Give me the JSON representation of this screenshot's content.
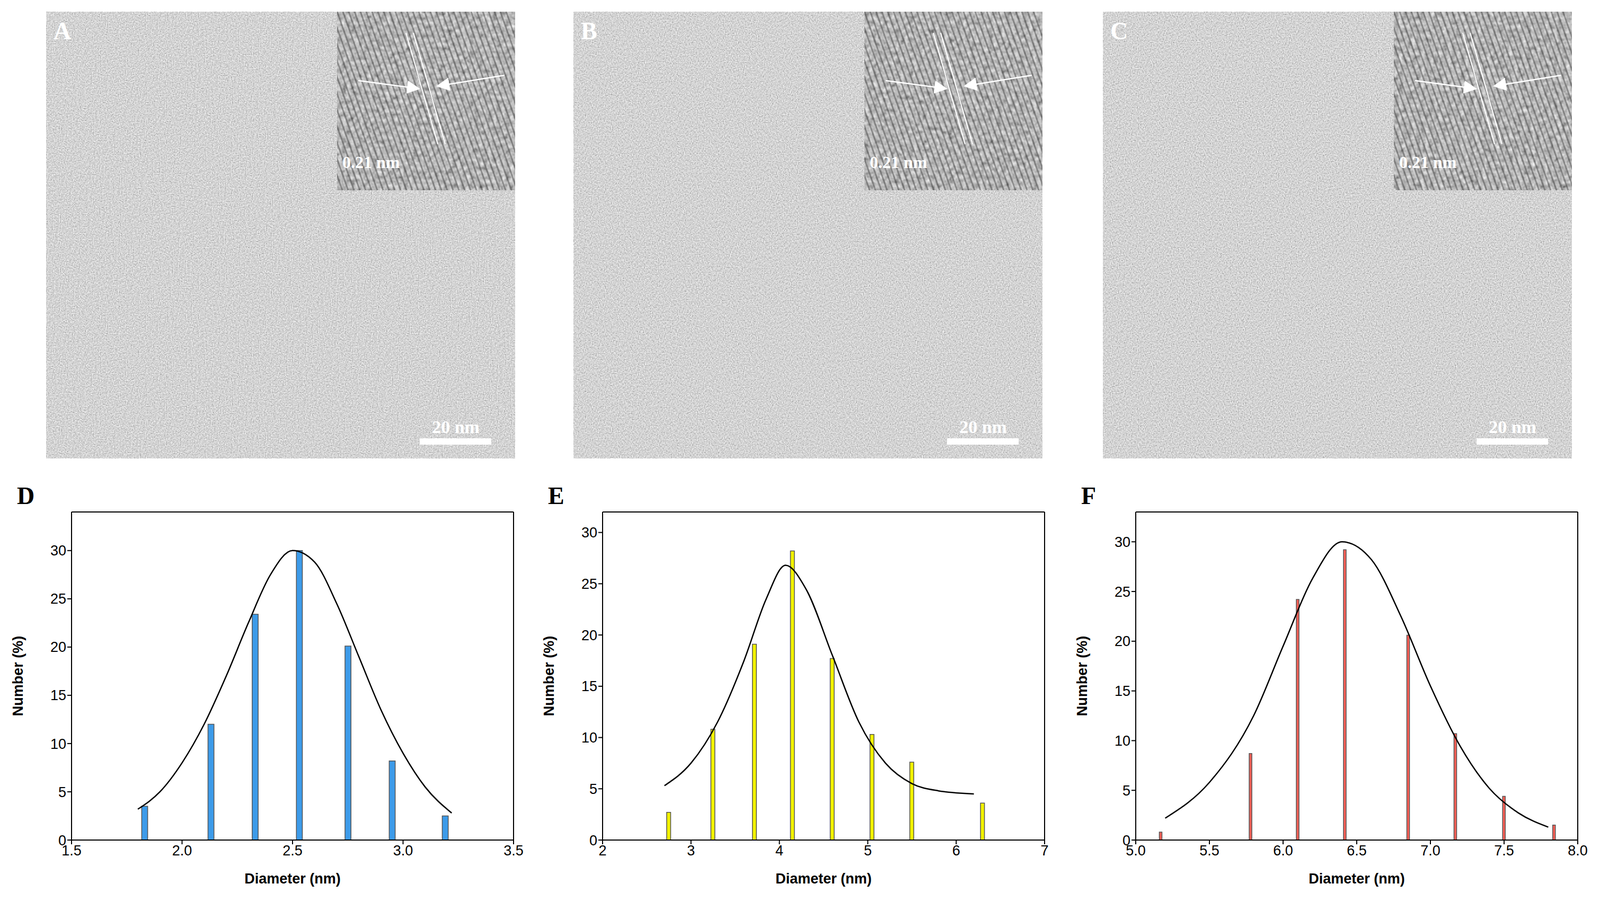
{
  "images": [
    {
      "panel": "A",
      "inset_label": "0.21 nm",
      "scale_bar": "20 nm"
    },
    {
      "panel": "B",
      "inset_label": "0.21 nm",
      "scale_bar": "20 nm"
    },
    {
      "panel": "C",
      "inset_label": "0.21 nm",
      "scale_bar": "20 nm"
    }
  ],
  "chart_data": [
    {
      "type": "bar",
      "panel": "D",
      "xlabel": "Diameter (nm)",
      "ylabel": "Number (%)",
      "xlim": [
        1.5,
        3.5
      ],
      "xticks": [
        1.5,
        {
          "value": 2,
          "label": "2.0"
        },
        2.5,
        {
          "value": 3,
          "label": "3.0"
        },
        3.5
      ],
      "ylim": [
        0,
        34
      ],
      "yticks": [
        0,
        5,
        10,
        15,
        20,
        25,
        30
      ],
      "series": [
        {
          "type": "bar",
          "color": "#3d9be9",
          "x": [
            1.83,
            2.13,
            2.33,
            2.53,
            2.75,
            2.95,
            3.19
          ],
          "values": [
            3.5,
            12,
            23.4,
            30,
            20.1,
            8.2,
            2.5
          ]
        },
        {
          "type": "line",
          "color": "#000000",
          "x": [
            1.8,
            1.9,
            2.0,
            2.1,
            2.2,
            2.3,
            2.4,
            2.5,
            2.6,
            2.7,
            2.8,
            2.9,
            3.0,
            3.1,
            3.22
          ],
          "values": [
            3.2,
            5,
            8,
            12,
            17,
            22.5,
            27.5,
            30,
            28.8,
            24.5,
            19,
            13.5,
            9,
            5.5,
            2.8
          ]
        }
      ]
    },
    {
      "type": "bar",
      "panel": "E",
      "xlabel": "Diameter (nm)",
      "ylabel": "Number (%)",
      "xlim": [
        2,
        7
      ],
      "xticks": [
        2,
        3,
        4,
        5,
        6,
        7
      ],
      "ylim": [
        0,
        32
      ],
      "yticks": [
        0,
        5,
        10,
        15,
        20,
        25,
        30
      ],
      "series": [
        {
          "type": "bar",
          "color": "#f2f200",
          "x": [
            2.75,
            3.25,
            3.72,
            4.15,
            4.6,
            5.05,
            5.5,
            6.3
          ],
          "values": [
            2.7,
            10.8,
            19.1,
            28.2,
            17.7,
            10.3,
            7.6,
            3.6
          ]
        },
        {
          "type": "line",
          "color": "#000000",
          "x": [
            2.7,
            3.0,
            3.3,
            3.6,
            3.85,
            4.07,
            4.3,
            4.6,
            4.9,
            5.2,
            5.5,
            5.8,
            6.2
          ],
          "values": [
            5.3,
            7.5,
            11.5,
            17.5,
            23.5,
            26.8,
            24.5,
            18,
            11.5,
            7.5,
            5.5,
            4.8,
            4.5
          ]
        }
      ]
    },
    {
      "type": "bar",
      "panel": "F",
      "xlabel": "Diameter (nm)",
      "ylabel": "Number (%)",
      "xlim": [
        5,
        8
      ],
      "xticks": [
        {
          "value": 5,
          "label": "5.0"
        },
        5.5,
        {
          "value": 6,
          "label": "6.0"
        },
        6.5,
        {
          "value": 7,
          "label": "7.0"
        },
        7.5,
        {
          "value": 8,
          "label": "8.0"
        }
      ],
      "ylim": [
        0,
        33
      ],
      "yticks": [
        0,
        5,
        10,
        15,
        20,
        25,
        30
      ],
      "series": [
        {
          "type": "bar",
          "color": "#fc5f55",
          "x": [
            5.17,
            5.78,
            6.1,
            6.42,
            6.85,
            7.17,
            7.5,
            7.84
          ],
          "values": [
            0.8,
            8.7,
            24.2,
            29.2,
            20.6,
            10.7,
            4.4,
            1.5
          ]
        },
        {
          "type": "line",
          "color": "#000000",
          "x": [
            5.2,
            5.5,
            5.8,
            6.0,
            6.2,
            6.4,
            6.6,
            6.8,
            7.0,
            7.2,
            7.4,
            7.6,
            7.8
          ],
          "values": [
            2.2,
            5.8,
            12.5,
            19.5,
            26.3,
            30,
            28.2,
            22.5,
            15.5,
            9.5,
            5.2,
            2.7,
            1.3
          ]
        }
      ]
    }
  ]
}
